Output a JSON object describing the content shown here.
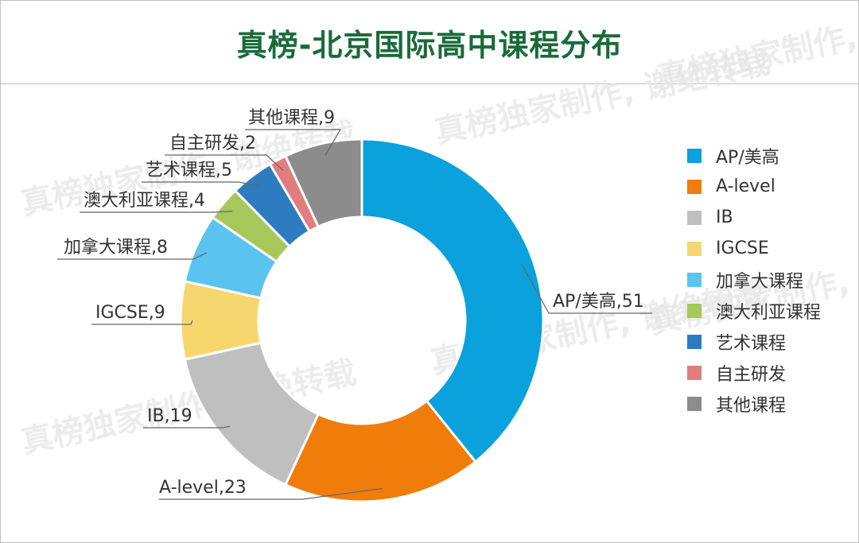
{
  "title": "真榜-北京国际高中课程分布",
  "watermark": "真榜独家制作, 谢绝转载",
  "chart_data": {
    "type": "pie",
    "donut": true,
    "legend_position": "right",
    "categories": [
      "AP/美高",
      "A-level",
      "IB",
      "IGCSE",
      "加拿大课程",
      "澳大利亚课程",
      "艺术课程",
      "自主研发",
      "其他课程"
    ],
    "values": [
      51,
      23,
      19,
      9,
      8,
      4,
      5,
      2,
      9
    ],
    "colors": [
      "#0aa1dc",
      "#f07c0a",
      "#bfbfbf",
      "#f5d76e",
      "#5bc3ef",
      "#a6c85a",
      "#2e7cbf",
      "#e27d7f",
      "#8c8c8c"
    ],
    "data_labels": [
      "AP/美高,51",
      "A-level,23",
      "IB,19",
      "IGCSE,9",
      "加拿大课程,8",
      "澳大利亚课程,4",
      "艺术课程,5",
      "自主研发,2",
      "其他课程,9"
    ]
  }
}
